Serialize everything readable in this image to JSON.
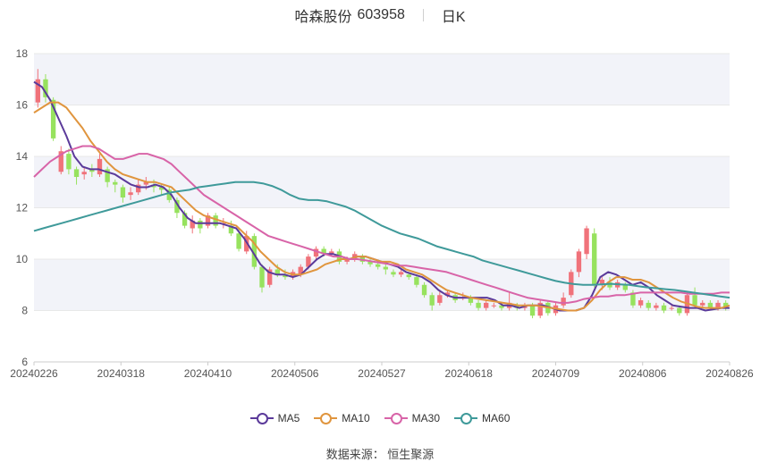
{
  "title": {
    "name": "哈森股份",
    "code": "603958",
    "period": "日K"
  },
  "source": "数据来源： 恒生聚源",
  "colors": {
    "up": "#f0727a",
    "down": "#97e25e",
    "ma5": "#5b3a9a",
    "ma10": "#e0953e",
    "ma30": "#d864a8",
    "ma60": "#3f9a9a",
    "grid": "#e8e8e8",
    "band": "#f2f3f9"
  },
  "chart_data": {
    "type": "candlestick",
    "x_ticks": [
      "20240226",
      "20240318",
      "20240410",
      "20240506",
      "20240527",
      "20240618",
      "20240709",
      "20240806",
      "20240826"
    ],
    "y_ticks": [
      6,
      8,
      10,
      12,
      14,
      16,
      18
    ],
    "ylim": [
      6,
      18
    ],
    "grid": true,
    "legend_position": "bottom",
    "series": [
      {
        "name": "MA5",
        "color": "#5b3a9a",
        "values": [
          16.9,
          16.7,
          16.2,
          15.5,
          14.8,
          14.0,
          13.6,
          13.5,
          13.5,
          13.4,
          13.3,
          13.1,
          12.9,
          12.8,
          12.8,
          12.9,
          12.8,
          12.5,
          12.0,
          11.6,
          11.4,
          11.4,
          11.4,
          11.4,
          11.3,
          11.2,
          10.8,
          10.3,
          9.8,
          9.5,
          9.4,
          9.4,
          9.3,
          9.4,
          9.7,
          10.0,
          10.2,
          10.2,
          10.1,
          10.0,
          10.1,
          10.1,
          10.0,
          9.9,
          9.8,
          9.7,
          9.5,
          9.4,
          9.3,
          9.1,
          8.8,
          8.6,
          8.5,
          8.5,
          8.5,
          8.5,
          8.5,
          8.4,
          8.2,
          8.2,
          8.1,
          8.2,
          8.2,
          8.2,
          8.1,
          8.0,
          8.0,
          8.0,
          8.1,
          8.6,
          9.3,
          9.5,
          9.4,
          9.2,
          9.0,
          9.1,
          8.9,
          8.6,
          8.4,
          8.2,
          8.15,
          8.1,
          8.1,
          8.0,
          8.05,
          8.1,
          8.1
        ]
      },
      {
        "name": "MA10",
        "color": "#e0953e",
        "values": [
          15.7,
          15.9,
          16.1,
          16.1,
          15.9,
          15.5,
          15.1,
          14.6,
          14.2,
          13.8,
          13.5,
          13.3,
          13.2,
          13.1,
          13.0,
          13.0,
          12.9,
          12.8,
          12.5,
          12.2,
          11.9,
          11.7,
          11.6,
          11.5,
          11.4,
          11.3,
          11.0,
          10.7,
          10.3,
          10.0,
          9.7,
          9.5,
          9.4,
          9.4,
          9.5,
          9.6,
          9.8,
          9.9,
          10.0,
          10.0,
          10.1,
          10.1,
          10.0,
          9.9,
          9.9,
          9.8,
          9.6,
          9.5,
          9.4,
          9.2,
          9.0,
          8.8,
          8.7,
          8.6,
          8.5,
          8.45,
          8.4,
          8.35,
          8.3,
          8.25,
          8.2,
          8.2,
          8.2,
          8.15,
          8.1,
          8.05,
          8.0,
          8.0,
          8.1,
          8.4,
          8.8,
          9.1,
          9.3,
          9.3,
          9.2,
          9.2,
          9.1,
          8.9,
          8.7,
          8.5,
          8.35,
          8.25,
          8.15,
          8.1,
          8.1,
          8.1,
          8.2
        ]
      },
      {
        "name": "MA30",
        "color": "#d864a8",
        "values": [
          13.2,
          13.5,
          13.8,
          14.0,
          14.2,
          14.3,
          14.4,
          14.4,
          14.3,
          14.1,
          13.9,
          13.9,
          14.0,
          14.1,
          14.1,
          14.0,
          13.9,
          13.7,
          13.4,
          13.1,
          12.8,
          12.5,
          12.3,
          12.1,
          11.9,
          11.7,
          11.5,
          11.3,
          11.1,
          10.9,
          10.8,
          10.7,
          10.6,
          10.5,
          10.4,
          10.3,
          10.2,
          10.1,
          10.1,
          10.0,
          10.0,
          9.95,
          9.9,
          9.85,
          9.8,
          9.75,
          9.75,
          9.7,
          9.65,
          9.6,
          9.55,
          9.5,
          9.4,
          9.3,
          9.2,
          9.1,
          9.0,
          8.9,
          8.8,
          8.7,
          8.6,
          8.5,
          8.45,
          8.4,
          8.35,
          8.3,
          8.3,
          8.35,
          8.45,
          8.5,
          8.55,
          8.55,
          8.6,
          8.6,
          8.65,
          8.7,
          8.7,
          8.7,
          8.7,
          8.7,
          8.7,
          8.65,
          8.65,
          8.65,
          8.65,
          8.7,
          8.7
        ]
      },
      {
        "name": "MA60",
        "color": "#3f9a9a",
        "values": [
          11.1,
          11.2,
          11.3,
          11.4,
          11.5,
          11.6,
          11.7,
          11.8,
          11.9,
          12.0,
          12.1,
          12.2,
          12.3,
          12.4,
          12.5,
          12.6,
          12.65,
          12.7,
          12.8,
          12.85,
          12.9,
          12.95,
          13.0,
          13.0,
          13.0,
          12.95,
          12.85,
          12.7,
          12.5,
          12.35,
          12.3,
          12.3,
          12.25,
          12.15,
          12.05,
          11.9,
          11.7,
          11.5,
          11.3,
          11.15,
          11.0,
          10.9,
          10.8,
          10.65,
          10.5,
          10.4,
          10.3,
          10.2,
          10.1,
          9.95,
          9.85,
          9.75,
          9.65,
          9.55,
          9.45,
          9.35,
          9.25,
          9.15,
          9.08,
          9.03,
          9.0,
          9.0,
          9.02,
          9.04,
          9.02,
          9.0,
          8.95,
          8.9,
          8.87,
          8.83,
          8.8,
          8.75,
          8.7,
          8.65,
          8.6,
          8.55,
          8.5
        ]
      }
    ],
    "candles": [
      [
        16.1,
        17.0,
        17.4,
        15.9
      ],
      [
        17.0,
        16.3,
        17.2,
        16.1
      ],
      [
        16.2,
        14.7,
        16.3,
        14.6
      ],
      [
        13.4,
        14.2,
        14.4,
        13.3
      ],
      [
        14.1,
        13.5,
        14.3,
        13.3
      ],
      [
        13.5,
        13.2,
        13.6,
        12.9
      ],
      [
        13.3,
        13.4,
        13.6,
        13.1
      ],
      [
        13.5,
        13.4,
        13.7,
        13.2
      ],
      [
        13.3,
        13.9,
        14.1,
        13.2
      ],
      [
        13.5,
        13.0,
        13.6,
        12.8
      ],
      [
        13.0,
        12.9,
        13.1,
        12.6
      ],
      [
        12.8,
        12.4,
        12.9,
        12.2
      ],
      [
        12.5,
        12.6,
        12.8,
        12.3
      ],
      [
        12.6,
        12.9,
        13.1,
        12.5
      ],
      [
        12.9,
        13.0,
        13.2,
        12.7
      ],
      [
        12.9,
        12.8,
        13.1,
        12.6
      ],
      [
        12.8,
        12.7,
        12.9,
        12.5
      ],
      [
        12.7,
        12.3,
        12.8,
        12.2
      ],
      [
        12.3,
        11.8,
        12.4,
        11.6
      ],
      [
        11.8,
        11.3,
        11.9,
        11.2
      ],
      [
        11.2,
        11.5,
        11.7,
        11.0
      ],
      [
        11.5,
        11.2,
        11.6,
        11.0
      ],
      [
        11.3,
        11.7,
        11.8,
        11.2
      ],
      [
        11.7,
        11.3,
        11.8,
        11.2
      ],
      [
        11.4,
        11.4,
        11.6,
        11.2
      ],
      [
        11.3,
        11.0,
        11.5,
        10.9
      ],
      [
        11.0,
        10.4,
        11.2,
        10.3
      ],
      [
        10.3,
        10.9,
        11.1,
        10.2
      ],
      [
        10.9,
        9.7,
        11.0,
        9.6
      ],
      [
        9.7,
        8.9,
        9.8,
        8.7
      ],
      [
        9.0,
        9.6,
        9.7,
        8.9
      ],
      [
        9.6,
        9.4,
        9.8,
        9.3
      ],
      [
        9.4,
        9.3,
        9.6,
        9.2
      ],
      [
        9.3,
        9.5,
        9.6,
        9.2
      ],
      [
        9.4,
        9.7,
        9.8,
        9.3
      ],
      [
        9.7,
        10.1,
        10.2,
        9.6
      ],
      [
        10.1,
        10.4,
        10.5,
        10.0
      ],
      [
        10.4,
        10.2,
        10.5,
        10.1
      ],
      [
        10.2,
        10.3,
        10.4,
        10.1
      ],
      [
        10.3,
        9.9,
        10.4,
        9.8
      ],
      [
        9.9,
        10.0,
        10.1,
        9.8
      ],
      [
        10.0,
        10.2,
        10.3,
        9.9
      ],
      [
        10.1,
        9.9,
        10.2,
        9.8
      ],
      [
        9.9,
        9.8,
        10.0,
        9.7
      ],
      [
        9.8,
        9.7,
        9.9,
        9.6
      ],
      [
        9.7,
        9.6,
        9.8,
        9.4
      ],
      [
        9.5,
        9.4,
        9.6,
        9.3
      ],
      [
        9.4,
        9.5,
        9.6,
        9.3
      ],
      [
        9.4,
        9.3,
        9.5,
        9.2
      ],
      [
        9.3,
        9.0,
        9.4,
        8.9
      ],
      [
        9.0,
        8.6,
        9.1,
        8.5
      ],
      [
        8.6,
        8.2,
        8.7,
        8.0
      ],
      [
        8.3,
        8.6,
        8.8,
        8.2
      ],
      [
        8.6,
        8.7,
        8.8,
        8.5
      ],
      [
        8.6,
        8.4,
        8.7,
        8.3
      ],
      [
        8.5,
        8.5,
        8.7,
        8.4
      ],
      [
        8.5,
        8.3,
        8.6,
        8.2
      ],
      [
        8.3,
        8.1,
        8.4,
        8.0
      ],
      [
        8.1,
        8.3,
        8.4,
        8.0
      ],
      [
        8.2,
        8.2,
        8.3,
        8.1
      ],
      [
        8.2,
        8.1,
        8.3,
        8.0
      ],
      [
        8.1,
        8.3,
        8.7,
        8.0
      ],
      [
        8.2,
        8.1,
        8.3,
        8.0
      ],
      [
        8.1,
        8.2,
        8.3,
        8.0
      ],
      [
        8.2,
        7.8,
        8.3,
        7.7
      ],
      [
        7.8,
        8.3,
        8.4,
        7.7
      ],
      [
        8.3,
        7.9,
        8.4,
        7.8
      ],
      [
        7.9,
        8.2,
        8.3,
        7.8
      ],
      [
        8.2,
        8.5,
        8.7,
        8.1
      ],
      [
        8.6,
        9.5,
        9.6,
        8.5
      ],
      [
        9.5,
        10.3,
        10.4,
        9.3
      ],
      [
        10.2,
        11.2,
        11.3,
        10.0
      ],
      [
        11.0,
        9.0,
        11.2,
        8.9
      ],
      [
        9.0,
        9.2,
        9.3,
        8.8
      ],
      [
        9.1,
        8.9,
        9.3,
        8.8
      ],
      [
        8.9,
        9.1,
        9.2,
        8.8
      ],
      [
        9.0,
        8.8,
        9.1,
        8.7
      ],
      [
        8.7,
        8.2,
        8.8,
        8.1
      ],
      [
        8.2,
        8.4,
        8.5,
        8.1
      ],
      [
        8.3,
        8.1,
        8.4,
        8.0
      ],
      [
        8.1,
        8.2,
        8.3,
        8.0
      ],
      [
        8.2,
        8.0,
        8.3,
        7.9
      ],
      [
        8.1,
        8.1,
        8.2,
        8.0
      ],
      [
        8.1,
        7.9,
        8.2,
        7.8
      ],
      [
        7.9,
        8.6,
        8.7,
        7.8
      ],
      [
        8.6,
        8.2,
        8.9,
        8.1
      ],
      [
        8.2,
        8.3,
        8.4,
        8.1
      ],
      [
        8.3,
        8.1,
        8.4,
        8.0
      ],
      [
        8.1,
        8.3,
        8.4,
        8.0
      ],
      [
        8.3,
        8.1,
        8.4,
        8.0
      ]
    ]
  }
}
